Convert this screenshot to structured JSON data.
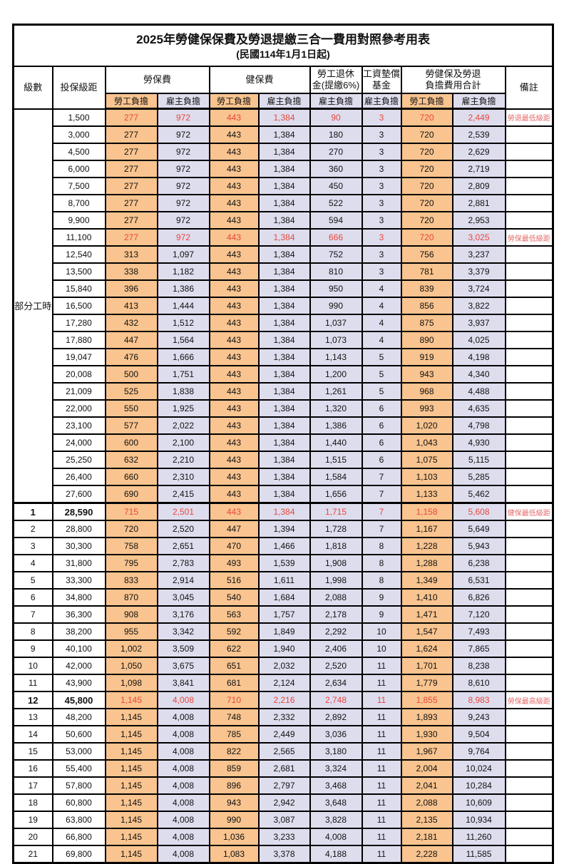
{
  "title": "2025年勞健保保費及勞退提繳三合一費用對照參考用表",
  "subtitle": "(民國114年1月1日起)",
  "colors": {
    "orange": "#F9C48F",
    "lavender": "#DEDDEE",
    "red": "#E8483C",
    "remarkRed": "#E56A6A",
    "border": "#000000"
  },
  "header": {
    "level": "級數",
    "bracket": "投保級距",
    "labor_insurance": "勞保費",
    "health_insurance": "健保費",
    "pension_line1": "勞工退休",
    "pension_line2": "金(提繳6%)",
    "wage_fund_line1": "工資墊償",
    "wage_fund_line2": "基金",
    "total_line1": "勞健保及勞退",
    "total_line2": "負擔費用合計",
    "remark": "備註",
    "employee_share": "勞工負擔",
    "employer_share": "雇主負擔"
  },
  "part_time_label": "部分工時",
  "chart_data": {
    "type": "table",
    "columns": [
      "級數",
      "投保級距",
      "勞保費-勞工負擔",
      "勞保費-雇主負擔",
      "健保費-勞工負擔",
      "健保費-雇主負擔",
      "勞工退休金(提繳6%)-雇主負擔",
      "工資墊償基金-雇主負擔",
      "合計-勞工負擔",
      "合計-雇主負擔",
      "備註"
    ]
  },
  "rows": [
    {
      "level": "",
      "bracket": "1,500",
      "values": [
        "277",
        "972",
        "443",
        "1,384",
        "90",
        "3",
        "720",
        "2,449"
      ],
      "remark": "勞退最低級距",
      "red": true,
      "bold": false
    },
    {
      "level": "",
      "bracket": "3,000",
      "values": [
        "277",
        "972",
        "443",
        "1,384",
        "180",
        "3",
        "720",
        "2,539"
      ],
      "remark": "",
      "red": false,
      "bold": false
    },
    {
      "level": "",
      "bracket": "4,500",
      "values": [
        "277",
        "972",
        "443",
        "1,384",
        "270",
        "3",
        "720",
        "2,629"
      ],
      "remark": "",
      "red": false,
      "bold": false
    },
    {
      "level": "",
      "bracket": "6,000",
      "values": [
        "277",
        "972",
        "443",
        "1,384",
        "360",
        "3",
        "720",
        "2,719"
      ],
      "remark": "",
      "red": false,
      "bold": false
    },
    {
      "level": "",
      "bracket": "7,500",
      "values": [
        "277",
        "972",
        "443",
        "1,384",
        "450",
        "3",
        "720",
        "2,809"
      ],
      "remark": "",
      "red": false,
      "bold": false
    },
    {
      "level": "",
      "bracket": "8,700",
      "values": [
        "277",
        "972",
        "443",
        "1,384",
        "522",
        "3",
        "720",
        "2,881"
      ],
      "remark": "",
      "red": false,
      "bold": false
    },
    {
      "level": "",
      "bracket": "9,900",
      "values": [
        "277",
        "972",
        "443",
        "1,384",
        "594",
        "3",
        "720",
        "2,953"
      ],
      "remark": "",
      "red": false,
      "bold": false
    },
    {
      "level": "",
      "bracket": "11,100",
      "values": [
        "277",
        "972",
        "443",
        "1,384",
        "666",
        "3",
        "720",
        "3,025"
      ],
      "remark": "勞保最低級距",
      "red": true,
      "bold": false
    },
    {
      "level": "",
      "bracket": "12,540",
      "values": [
        "313",
        "1,097",
        "443",
        "1,384",
        "752",
        "3",
        "756",
        "3,237"
      ],
      "remark": "",
      "red": false,
      "bold": false
    },
    {
      "level": "",
      "bracket": "13,500",
      "values": [
        "338",
        "1,182",
        "443",
        "1,384",
        "810",
        "3",
        "781",
        "3,379"
      ],
      "remark": "",
      "red": false,
      "bold": false
    },
    {
      "level": "",
      "bracket": "15,840",
      "values": [
        "396",
        "1,386",
        "443",
        "1,384",
        "950",
        "4",
        "839",
        "3,724"
      ],
      "remark": "",
      "red": false,
      "bold": false
    },
    {
      "level": "",
      "bracket": "16,500",
      "values": [
        "413",
        "1,444",
        "443",
        "1,384",
        "990",
        "4",
        "856",
        "3,822"
      ],
      "remark": "",
      "red": false,
      "bold": false
    },
    {
      "level": "",
      "bracket": "17,280",
      "values": [
        "432",
        "1,512",
        "443",
        "1,384",
        "1,037",
        "4",
        "875",
        "3,937"
      ],
      "remark": "",
      "red": false,
      "bold": false
    },
    {
      "level": "",
      "bracket": "17,880",
      "values": [
        "447",
        "1,564",
        "443",
        "1,384",
        "1,073",
        "4",
        "890",
        "4,025"
      ],
      "remark": "",
      "red": false,
      "bold": false
    },
    {
      "level": "",
      "bracket": "19,047",
      "values": [
        "476",
        "1,666",
        "443",
        "1,384",
        "1,143",
        "5",
        "919",
        "4,198"
      ],
      "remark": "",
      "red": false,
      "bold": false
    },
    {
      "level": "",
      "bracket": "20,008",
      "values": [
        "500",
        "1,751",
        "443",
        "1,384",
        "1,200",
        "5",
        "943",
        "4,340"
      ],
      "remark": "",
      "red": false,
      "bold": false
    },
    {
      "level": "",
      "bracket": "21,009",
      "values": [
        "525",
        "1,838",
        "443",
        "1,384",
        "1,261",
        "5",
        "968",
        "4,488"
      ],
      "remark": "",
      "red": false,
      "bold": false
    },
    {
      "level": "",
      "bracket": "22,000",
      "values": [
        "550",
        "1,925",
        "443",
        "1,384",
        "1,320",
        "6",
        "993",
        "4,635"
      ],
      "remark": "",
      "red": false,
      "bold": false
    },
    {
      "level": "",
      "bracket": "23,100",
      "values": [
        "577",
        "2,022",
        "443",
        "1,384",
        "1,386",
        "6",
        "1,020",
        "4,798"
      ],
      "remark": "",
      "red": false,
      "bold": false
    },
    {
      "level": "",
      "bracket": "24,000",
      "values": [
        "600",
        "2,100",
        "443",
        "1,384",
        "1,440",
        "6",
        "1,043",
        "4,930"
      ],
      "remark": "",
      "red": false,
      "bold": false
    },
    {
      "level": "",
      "bracket": "25,250",
      "values": [
        "632",
        "2,210",
        "443",
        "1,384",
        "1,515",
        "6",
        "1,075",
        "5,115"
      ],
      "remark": "",
      "red": false,
      "bold": false
    },
    {
      "level": "",
      "bracket": "26,400",
      "values": [
        "660",
        "2,310",
        "443",
        "1,384",
        "1,584",
        "7",
        "1,103",
        "5,285"
      ],
      "remark": "",
      "red": false,
      "bold": false
    },
    {
      "level": "",
      "bracket": "27,600",
      "values": [
        "690",
        "2,415",
        "443",
        "1,384",
        "1,656",
        "7",
        "1,133",
        "5,462"
      ],
      "remark": "",
      "red": false,
      "bold": false
    },
    {
      "level": "1",
      "bracket": "28,590",
      "values": [
        "715",
        "2,501",
        "443",
        "1,384",
        "1,715",
        "7",
        "1,158",
        "5,608"
      ],
      "remark": "健保最低級距",
      "red": true,
      "bold": true
    },
    {
      "level": "2",
      "bracket": "28,800",
      "values": [
        "720",
        "2,520",
        "447",
        "1,394",
        "1,728",
        "7",
        "1,167",
        "5,649"
      ],
      "remark": "",
      "red": false,
      "bold": false
    },
    {
      "level": "3",
      "bracket": "30,300",
      "values": [
        "758",
        "2,651",
        "470",
        "1,466",
        "1,818",
        "8",
        "1,228",
        "5,943"
      ],
      "remark": "",
      "red": false,
      "bold": false
    },
    {
      "level": "4",
      "bracket": "31,800",
      "values": [
        "795",
        "2,783",
        "493",
        "1,539",
        "1,908",
        "8",
        "1,288",
        "6,238"
      ],
      "remark": "",
      "red": false,
      "bold": false
    },
    {
      "level": "5",
      "bracket": "33,300",
      "values": [
        "833",
        "2,914",
        "516",
        "1,611",
        "1,998",
        "8",
        "1,349",
        "6,531"
      ],
      "remark": "",
      "red": false,
      "bold": false
    },
    {
      "level": "6",
      "bracket": "34,800",
      "values": [
        "870",
        "3,045",
        "540",
        "1,684",
        "2,088",
        "9",
        "1,410",
        "6,826"
      ],
      "remark": "",
      "red": false,
      "bold": false
    },
    {
      "level": "7",
      "bracket": "36,300",
      "values": [
        "908",
        "3,176",
        "563",
        "1,757",
        "2,178",
        "9",
        "1,471",
        "7,120"
      ],
      "remark": "",
      "red": false,
      "bold": false
    },
    {
      "level": "8",
      "bracket": "38,200",
      "values": [
        "955",
        "3,342",
        "592",
        "1,849",
        "2,292",
        "10",
        "1,547",
        "7,493"
      ],
      "remark": "",
      "red": false,
      "bold": false
    },
    {
      "level": "9",
      "bracket": "40,100",
      "values": [
        "1,002",
        "3,509",
        "622",
        "1,940",
        "2,406",
        "10",
        "1,624",
        "7,865"
      ],
      "remark": "",
      "red": false,
      "bold": false
    },
    {
      "level": "10",
      "bracket": "42,000",
      "values": [
        "1,050",
        "3,675",
        "651",
        "2,032",
        "2,520",
        "11",
        "1,701",
        "8,238"
      ],
      "remark": "",
      "red": false,
      "bold": false
    },
    {
      "level": "11",
      "bracket": "43,900",
      "values": [
        "1,098",
        "3,841",
        "681",
        "2,124",
        "2,634",
        "11",
        "1,779",
        "8,610"
      ],
      "remark": "",
      "red": false,
      "bold": false
    },
    {
      "level": "12",
      "bracket": "45,800",
      "values": [
        "1,145",
        "4,008",
        "710",
        "2,216",
        "2,748",
        "11",
        "1,855",
        "8,983"
      ],
      "remark": "勞保最高級距",
      "red": true,
      "bold": true
    },
    {
      "level": "13",
      "bracket": "48,200",
      "values": [
        "1,145",
        "4,008",
        "748",
        "2,332",
        "2,892",
        "11",
        "1,893",
        "9,243"
      ],
      "remark": "",
      "red": false,
      "bold": false
    },
    {
      "level": "14",
      "bracket": "50,600",
      "values": [
        "1,145",
        "4,008",
        "785",
        "2,449",
        "3,036",
        "11",
        "1,930",
        "9,504"
      ],
      "remark": "",
      "red": false,
      "bold": false
    },
    {
      "level": "15",
      "bracket": "53,000",
      "values": [
        "1,145",
        "4,008",
        "822",
        "2,565",
        "3,180",
        "11",
        "1,967",
        "9,764"
      ],
      "remark": "",
      "red": false,
      "bold": false
    },
    {
      "level": "16",
      "bracket": "55,400",
      "values": [
        "1,145",
        "4,008",
        "859",
        "2,681",
        "3,324",
        "11",
        "2,004",
        "10,024"
      ],
      "remark": "",
      "red": false,
      "bold": false
    },
    {
      "level": "17",
      "bracket": "57,800",
      "values": [
        "1,145",
        "4,008",
        "896",
        "2,797",
        "3,468",
        "11",
        "2,041",
        "10,284"
      ],
      "remark": "",
      "red": false,
      "bold": false
    },
    {
      "level": "18",
      "bracket": "60,800",
      "values": [
        "1,145",
        "4,008",
        "943",
        "2,942",
        "3,648",
        "11",
        "2,088",
        "10,609"
      ],
      "remark": "",
      "red": false,
      "bold": false
    },
    {
      "level": "19",
      "bracket": "63,800",
      "values": [
        "1,145",
        "4,008",
        "990",
        "3,087",
        "3,828",
        "11",
        "2,135",
        "10,934"
      ],
      "remark": "",
      "red": false,
      "bold": false
    },
    {
      "level": "20",
      "bracket": "66,800",
      "values": [
        "1,145",
        "4,008",
        "1,036",
        "3,233",
        "4,008",
        "11",
        "2,181",
        "11,260"
      ],
      "remark": "",
      "red": false,
      "bold": false
    },
    {
      "level": "21",
      "bracket": "69,800",
      "values": [
        "1,145",
        "4,008",
        "1,083",
        "3,378",
        "4,188",
        "11",
        "2,228",
        "11,585"
      ],
      "remark": "",
      "red": false,
      "bold": false
    }
  ]
}
